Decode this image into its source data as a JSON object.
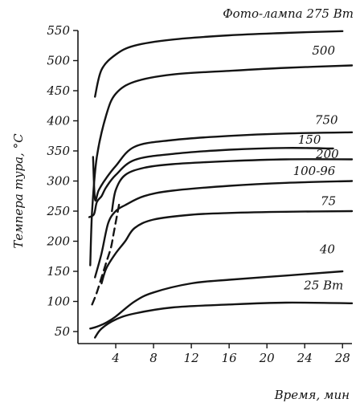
{
  "chart_data": {
    "type": "line",
    "title": "Фото-лампа 275 Вт",
    "xlabel": "Время, мин",
    "ylabel": "Темпера тура, °С",
    "xlim": [
      0,
      29
    ],
    "ylim": [
      30,
      550
    ],
    "xticks": [
      "4",
      "8",
      "12",
      "16",
      "20",
      "24",
      "28"
    ],
    "yticks": [
      "50",
      "100",
      "150",
      "200",
      "250",
      "300",
      "350",
      "400",
      "450",
      "500",
      "550"
    ],
    "grid": false,
    "series": [
      {
        "name": "Фото-лампа 275 Вт",
        "points": [
          [
            1.8,
            440
          ],
          [
            2.5,
            485
          ],
          [
            4,
            510
          ],
          [
            6,
            525
          ],
          [
            10,
            535
          ],
          [
            16,
            542
          ],
          [
            22,
            546
          ],
          [
            28,
            549
          ]
        ]
      },
      {
        "name": "500",
        "points": [
          [
            1.3,
            160
          ],
          [
            1.5,
            250
          ],
          [
            2,
            340
          ],
          [
            3,
            410
          ],
          [
            4,
            445
          ],
          [
            6,
            465
          ],
          [
            10,
            477
          ],
          [
            16,
            483
          ],
          [
            22,
            488
          ],
          [
            29,
            492
          ]
        ]
      },
      {
        "name": "750",
        "points": [
          [
            1.6,
            340
          ],
          [
            1.8,
            270
          ],
          [
            2.2,
            285
          ],
          [
            3,
            305
          ],
          [
            4,
            325
          ],
          [
            6,
            357
          ],
          [
            10,
            368
          ],
          [
            16,
            375
          ],
          [
            22,
            379
          ],
          [
            29,
            381
          ]
        ]
      },
      {
        "name": "150",
        "points": [
          [
            1.2,
            240
          ],
          [
            1.7,
            245
          ],
          [
            2,
            265
          ],
          [
            2.5,
            275
          ],
          [
            3,
            290
          ],
          [
            4,
            310
          ],
          [
            6,
            335
          ],
          [
            10,
            345
          ],
          [
            16,
            352
          ],
          [
            22,
            355
          ],
          [
            27,
            354
          ]
        ]
      },
      {
        "name": "200",
        "points": [
          [
            3.6,
            250
          ],
          [
            4,
            285
          ],
          [
            5,
            310
          ],
          [
            7,
            322
          ],
          [
            10,
            328
          ],
          [
            16,
            333
          ],
          [
            22,
            336
          ],
          [
            29,
            336
          ]
        ]
      },
      {
        "name": "100-96",
        "points": [
          [
            1.8,
            140
          ],
          [
            2.5,
            180
          ],
          [
            3.2,
            230
          ],
          [
            4,
            250
          ],
          [
            5,
            260
          ],
          [
            7,
            275
          ],
          [
            10,
            284
          ],
          [
            16,
            292
          ],
          [
            22,
            297
          ],
          [
            29,
            300
          ]
        ]
      },
      {
        "name": "75",
        "points": [
          [
            2.5,
            130
          ],
          [
            3,
            155
          ],
          [
            4,
            180
          ],
          [
            5,
            200
          ],
          [
            6,
            222
          ],
          [
            8,
            236
          ],
          [
            12,
            244
          ],
          [
            16,
            247
          ],
          [
            22,
            249
          ],
          [
            29,
            250
          ]
        ]
      },
      {
        "name": "40",
        "points": [
          [
            1.3,
            55
          ],
          [
            2,
            58
          ],
          [
            3,
            65
          ],
          [
            4,
            75
          ],
          [
            6,
            100
          ],
          [
            8,
            115
          ],
          [
            12,
            130
          ],
          [
            16,
            136
          ],
          [
            22,
            143
          ],
          [
            28,
            150
          ]
        ]
      },
      {
        "name": "25 Вт",
        "points": [
          [
            1.8,
            40
          ],
          [
            2.5,
            55
          ],
          [
            4,
            70
          ],
          [
            6,
            80
          ],
          [
            10,
            90
          ],
          [
            16,
            95
          ],
          [
            22,
            98
          ],
          [
            29,
            97
          ]
        ]
      }
    ],
    "dashed_line": {
      "points": [
        [
          1.5,
          95
        ],
        [
          2,
          115
        ],
        [
          2.5,
          140
        ],
        [
          3,
          165
        ],
        [
          3.5,
          190
        ],
        [
          3.8,
          215
        ],
        [
          4.1,
          240
        ],
        [
          4.4,
          265
        ]
      ]
    },
    "series_labels": [
      {
        "text": "500",
        "x": 26,
        "y": 510
      },
      {
        "text": "750",
        "x": 26.3,
        "y": 395
      },
      {
        "text": "150",
        "x": 24.5,
        "y": 362
      },
      {
        "text": "200",
        "x": 26.4,
        "y": 338
      },
      {
        "text": "100-96",
        "x": 25,
        "y": 310
      },
      {
        "text": "75",
        "x": 26.5,
        "y": 260
      },
      {
        "text": "40",
        "x": 26.4,
        "y": 180
      },
      {
        "text": "25 Вт",
        "x": 26,
        "y": 120
      }
    ]
  }
}
